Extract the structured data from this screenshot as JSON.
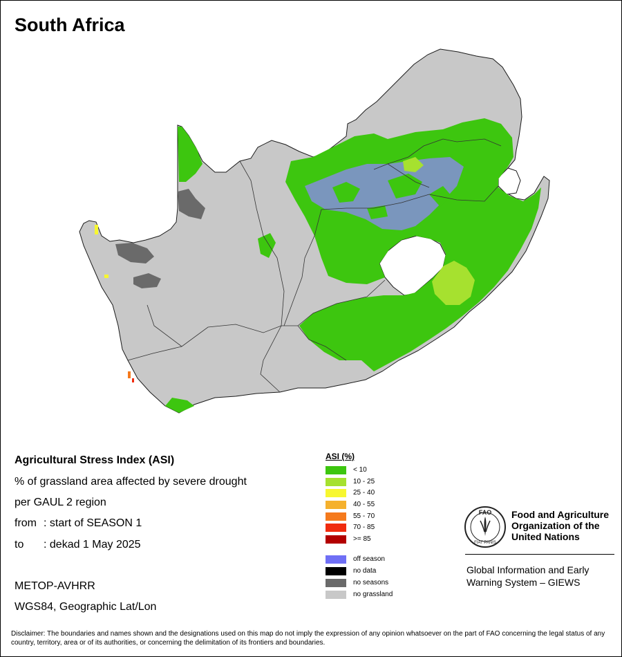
{
  "map": {
    "title": "South Africa",
    "colors": {
      "no_grassland": "#c8c8c8",
      "asi_lt10": "#3dc60f",
      "asi_10_25": "#a6e12f",
      "off_season": "#6f6ff5",
      "no_seasons": "#6a6a6a",
      "water_white": "#ffffff",
      "boundary": "#333333"
    }
  },
  "info": {
    "title": "Agricultural Stress Index (ASI)",
    "line1": "% of grassland area affected by severe drought",
    "line2": "per GAUL 2 region",
    "from_label": "from",
    "from_value": ": start of SEASON 1",
    "to_label": "to",
    "to_value": ": dekad 1 May 2025",
    "sensor": "METOP-AVHRR",
    "projection": "WGS84, Geographic Lat/Lon"
  },
  "legend": {
    "title": "ASI (%)",
    "items": [
      {
        "label": "< 10",
        "color": "#3dc60f"
      },
      {
        "label": "10 - 25",
        "color": "#a6e12f"
      },
      {
        "label": "25 - 40",
        "color": "#f7f730"
      },
      {
        "label": "40 - 55",
        "color": "#f5b12d"
      },
      {
        "label": "55 - 70",
        "color": "#f57a1d"
      },
      {
        "label": "70 - 85",
        "color": "#f02b0e"
      },
      {
        "label": ">= 85",
        "color": "#b30000"
      }
    ],
    "special": [
      {
        "label": "off season",
        "color": "#6f6ff5"
      },
      {
        "label": "no data",
        "color": "#000000"
      },
      {
        "label": "no seasons",
        "color": "#6a6a6a"
      },
      {
        "label": "no grassland",
        "color": "#c8c8c8"
      }
    ]
  },
  "branding": {
    "fao_name": "Food and Agriculture Organization of the United Nations",
    "logo_letters": "FAO",
    "logo_motto": "FIAT PANIS",
    "giews": "Global Information and Early Warning System – GIEWS"
  },
  "disclaimer": "Disclaimer: The boundaries and names shown and the designations used on this map do not imply the expression of any opinion whatsoever on the part of FAO concerning the legal status of any country, territory, area or of its authorities, or concerning the delimitation of its frontiers and boundaries."
}
